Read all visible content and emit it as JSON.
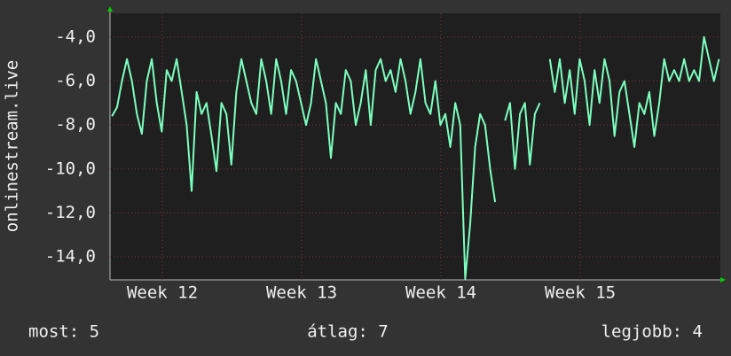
{
  "chart_data": {
    "type": "line",
    "y_label": "onlinestream.live",
    "x": [
      0.1,
      0.35,
      0.6,
      0.85,
      1.1,
      1.35,
      1.6,
      1.85,
      2.1,
      2.35,
      2.6,
      2.85,
      3.1,
      3.35,
      3.6,
      3.85,
      4.1,
      4.35,
      4.6,
      4.85,
      5.1,
      5.35,
      5.6,
      5.85,
      6.1,
      6.35,
      6.6,
      6.85,
      7.1,
      7.35,
      7.6,
      7.85,
      8.1,
      8.35,
      8.6,
      8.85,
      9.1,
      9.35,
      9.6,
      9.85,
      10.1,
      10.35,
      10.6,
      10.85,
      11.1,
      11.35,
      11.6,
      11.85,
      12.1,
      12.35,
      12.6,
      12.85,
      13.1,
      13.35,
      13.6,
      13.85,
      14.1,
      14.35,
      14.6,
      14.85,
      15.1,
      15.35,
      15.6,
      15.85,
      16.1,
      16.35,
      16.6,
      16.85,
      17.1,
      17.35,
      17.6,
      17.85,
      18.1,
      18.35,
      18.6,
      18.85,
      19.1,
      19.35,
      19.6,
      19.85,
      20.1,
      20.35,
      20.6,
      20.85,
      21.1,
      21.35,
      21.6,
      21.85,
      22.1,
      22.35,
      22.6,
      22.85,
      23.1,
      23.35,
      23.6,
      23.85,
      24.1,
      24.35,
      24.6,
      24.85,
      25.1,
      25.35,
      25.6,
      25.85,
      26.1,
      26.35,
      26.6,
      26.85,
      27.1,
      27.35,
      27.6,
      27.85,
      28.1,
      28.35,
      28.6,
      28.85,
      29.1,
      29.35,
      29.6,
      29.85,
      30.1,
      30.35,
      30.6
    ],
    "series": [
      {
        "name": "onlinestream.live",
        "color": "#7dffbf",
        "values": [
          -7.6,
          -7.2,
          -6.0,
          -5.0,
          -6.0,
          -7.5,
          -8.4,
          -6.0,
          -5.0,
          -7.0,
          -8.3,
          -5.5,
          -6.0,
          -5.0,
          -6.5,
          -8.0,
          -11.0,
          -6.5,
          -7.5,
          -7.0,
          -8.5,
          -10.1,
          -7.0,
          -7.5,
          -9.8,
          -6.5,
          -5.0,
          -6.0,
          -7.0,
          -7.5,
          -5.0,
          -6.0,
          -7.5,
          -5.0,
          -6.0,
          -7.5,
          -5.5,
          -6.0,
          -7.0,
          -8.0,
          -7.0,
          -5.0,
          -6.0,
          -7.0,
          -9.5,
          -7.0,
          -7.5,
          -5.5,
          -6.0,
          -8.0,
          -7.0,
          -5.5,
          -8.0,
          -5.5,
          -5.0,
          -6.0,
          -5.5,
          -6.5,
          -5.0,
          -6.0,
          -7.5,
          -6.5,
          -5.0,
          -7.0,
          -7.5,
          -6.0,
          -8.0,
          -7.5,
          -9.0,
          -7.0,
          -8.0,
          -15.0,
          -12.5,
          -9.0,
          -7.5,
          -8.0,
          -10.0,
          -11.5,
          null,
          -7.8,
          -7.0,
          -10.0,
          -7.5,
          -7.0,
          -9.8,
          -7.5,
          -7.0,
          null,
          -5.0,
          -6.5,
          -5.0,
          -7.0,
          -5.5,
          -7.5,
          -5.0,
          -6.0,
          -8.0,
          -5.5,
          -7.0,
          -5.0,
          -6.0,
          -8.5,
          -6.5,
          -6.0,
          -7.5,
          -9.0,
          -7.0,
          -7.5,
          -6.5,
          -8.5,
          -7.0,
          -5.0,
          -6.0,
          -5.5,
          -6.0,
          -5.0,
          -6.0,
          -5.5,
          -6.0,
          -4.0,
          -5.0,
          -6.0,
          -5.0
        ]
      }
    ],
    "xlim": [
      0,
      30.67
    ],
    "xticks": [
      {
        "value": 2.63,
        "label": "Week 12"
      },
      {
        "value": 9.63,
        "label": "Week 13"
      },
      {
        "value": 16.63,
        "label": "Week 14"
      },
      {
        "value": 23.63,
        "label": "Week 15"
      }
    ],
    "ylim": [
      -15.04,
      -2.92
    ],
    "yticks": [
      {
        "value": -14,
        "label": "-14,0"
      },
      {
        "value": -12,
        "label": "-12,0"
      },
      {
        "value": -10,
        "label": "-10,0"
      },
      {
        "value": -8,
        "label": "-8,0"
      },
      {
        "value": -6,
        "label": "-6,0"
      },
      {
        "value": -4,
        "label": "-4,0"
      }
    ],
    "grid": true,
    "stats": [
      "most: 5",
      "átlag: 7",
      "legjobb: 4"
    ]
  }
}
